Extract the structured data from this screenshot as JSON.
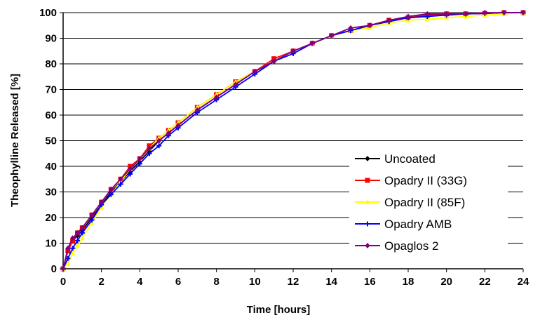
{
  "chart_data": {
    "type": "line",
    "title": "",
    "xlabel": "Time [hours]",
    "ylabel": "Theophylline Released [%]",
    "xlim": [
      0,
      24
    ],
    "ylim": [
      0,
      100
    ],
    "x_ticks": [
      0,
      2,
      4,
      6,
      8,
      10,
      12,
      14,
      16,
      18,
      20,
      22,
      24
    ],
    "y_ticks": [
      0,
      10,
      20,
      30,
      40,
      50,
      60,
      70,
      80,
      90,
      100
    ],
    "grid": "horizontal",
    "legend_position": "bottom-right",
    "series": [
      {
        "name": "Uncoated",
        "color": "#000000",
        "marker": "diamond",
        "x": [
          0,
          0.25,
          0.5,
          0.75,
          1,
          1.5,
          2,
          2.5,
          3,
          3.5,
          4,
          4.5,
          5,
          5.5,
          6,
          7,
          8,
          9,
          10,
          11,
          12,
          13,
          14,
          15,
          16,
          17,
          18,
          19,
          20,
          21,
          22,
          23,
          24
        ],
        "y": [
          0,
          7,
          11,
          13,
          15,
          20,
          25,
          30,
          34,
          38,
          42,
          46,
          50,
          53,
          56,
          62,
          67,
          72,
          77,
          81,
          85,
          88,
          91,
          93,
          95,
          97,
          98,
          99,
          99.5,
          99.5,
          99.7,
          100,
          100
        ]
      },
      {
        "name": "Opadry II (33G)",
        "color": "#ff0000",
        "marker": "square",
        "x": [
          0,
          0.25,
          0.5,
          0.75,
          1,
          1.5,
          2,
          2.5,
          3,
          3.5,
          4,
          4.5,
          5,
          5.5,
          6,
          7,
          8,
          9,
          10,
          11,
          12,
          13,
          14,
          15,
          16,
          17,
          18,
          19,
          20,
          21,
          22,
          23,
          24
        ],
        "y": [
          0,
          7,
          11,
          14,
          16,
          21,
          26,
          31,
          35,
          40,
          43,
          48,
          51,
          54,
          57,
          63,
          68,
          73,
          77,
          82,
          85,
          88,
          91,
          93,
          95,
          97,
          98,
          99,
          99.5,
          99.5,
          99.7,
          100,
          100
        ]
      },
      {
        "name": "Opadry II (85F)",
        "color": "#ffff00",
        "marker": "triangle",
        "x": [
          0,
          0.25,
          0.5,
          0.75,
          1,
          1.5,
          2,
          2.5,
          3,
          3.5,
          4,
          4.5,
          5,
          5.5,
          6,
          7,
          8,
          9,
          10,
          11,
          12,
          13,
          14,
          15,
          16,
          17,
          18,
          19,
          20,
          21,
          22,
          23,
          24
        ],
        "y": [
          0,
          2,
          6,
          9,
          12,
          18,
          24,
          29,
          34,
          39,
          43,
          47,
          51,
          54,
          57,
          63,
          68,
          73,
          77,
          81,
          85,
          88,
          91,
          93,
          94,
          96,
          97,
          97.5,
          98,
          98.5,
          99,
          99.5,
          100
        ]
      },
      {
        "name": "Opadry AMB",
        "color": "#0000ff",
        "marker": "cross",
        "x": [
          0,
          0.25,
          0.5,
          0.75,
          1,
          1.5,
          2,
          2.5,
          3,
          3.5,
          4,
          4.5,
          5,
          5.5,
          6,
          7,
          8,
          9,
          10,
          11,
          12,
          13,
          14,
          15,
          16,
          17,
          18,
          19,
          20,
          21,
          22,
          23,
          24
        ],
        "y": [
          0,
          4,
          8,
          11,
          14,
          19,
          25,
          29,
          33,
          37,
          41,
          45,
          48,
          52,
          55,
          61,
          66,
          71,
          76,
          81,
          84,
          88,
          91,
          93,
          95,
          96.5,
          98,
          98.5,
          99,
          99.5,
          99.7,
          100,
          100
        ]
      },
      {
        "name": "Opaglos 2",
        "color": "#800080",
        "marker": "diamond",
        "x": [
          0,
          0.25,
          0.5,
          0.75,
          1,
          1.5,
          2,
          2.5,
          3,
          3.5,
          4,
          4.5,
          5,
          5.5,
          6,
          7,
          8,
          9,
          10,
          11,
          12,
          13,
          14,
          15,
          16,
          17,
          18,
          19,
          20,
          21,
          22,
          23,
          24
        ],
        "y": [
          0,
          8,
          12,
          14,
          16,
          21,
          26,
          31,
          35,
          39,
          43,
          47,
          50,
          53,
          56,
          62,
          67,
          72,
          77,
          81,
          85,
          88,
          91,
          94,
          95,
          97,
          98.5,
          99.5,
          99.5,
          99.5,
          100,
          100,
          100
        ]
      }
    ]
  }
}
